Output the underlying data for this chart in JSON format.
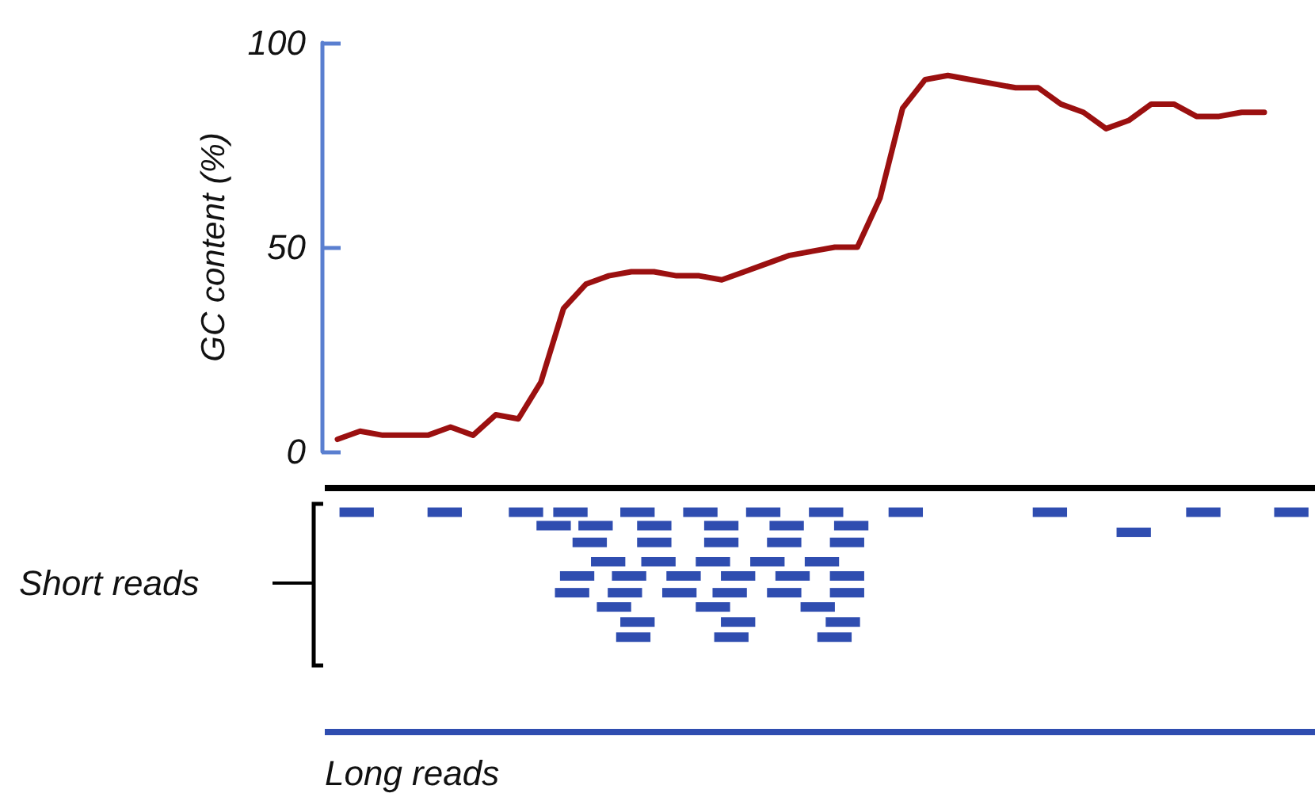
{
  "chart_data": {
    "type": "line",
    "ylabel": "GC content (%)",
    "categories": [
      null,
      null,
      null,
      null,
      null,
      null,
      null,
      null,
      null,
      null,
      null,
      null,
      null,
      null,
      null,
      null,
      null,
      null,
      null,
      null,
      null,
      null,
      null,
      null,
      null,
      null,
      null,
      null,
      null,
      null,
      null,
      null,
      null,
      null,
      null,
      null,
      null,
      null,
      null,
      null,
      null,
      null
    ],
    "series": [
      {
        "color": "#9b1010",
        "values": [
          3,
          5,
          4,
          4,
          4,
          6,
          4,
          9,
          8,
          17,
          35,
          41,
          43,
          44,
          44,
          43,
          43,
          42,
          44,
          46,
          48,
          49,
          50,
          50,
          62,
          84,
          91,
          92,
          91,
          90,
          89,
          89,
          85,
          83,
          79,
          81,
          85,
          85,
          82,
          82,
          83,
          83
        ]
      }
    ],
    "ylim": [
      0,
      100
    ],
    "yticks": [
      0,
      50,
      100
    ],
    "marker": "none",
    "line_style": "solid",
    "tick_labels": "y",
    "annotations": [
      "Short reads",
      "Long reads"
    ]
  }
}
